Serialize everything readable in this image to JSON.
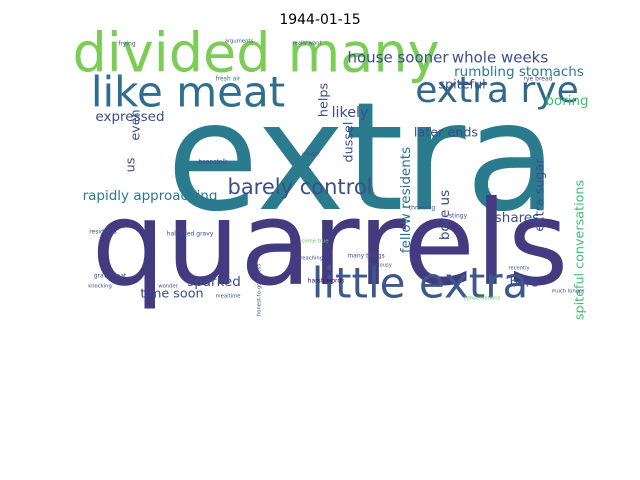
{
  "chart_data": {
    "type": "wordcloud",
    "title": "1944-01-15",
    "words": [
      {
        "text": "extra",
        "weight": 1.0,
        "color": "#2a7b8e"
      },
      {
        "text": "quarrels",
        "weight": 0.78,
        "color": "#433a80"
      },
      {
        "text": "divided many",
        "weight": 0.36,
        "color": "#7ccd55"
      },
      {
        "text": "like meat",
        "weight": 0.28,
        "color": "#2f6e8e"
      },
      {
        "text": "extra rye",
        "weight": 0.24,
        "color": "#2f6a8d"
      },
      {
        "text": "little extra",
        "weight": 0.28,
        "color": "#3b5a8b"
      },
      {
        "text": "barely control",
        "weight": 0.14,
        "color": "#3d4e8a"
      },
      {
        "text": "house sooner",
        "weight": 0.1,
        "color": "#3b4d8b"
      },
      {
        "text": "whole weeks",
        "weight": 0.1,
        "color": "#3b4d8b"
      },
      {
        "text": "rumbling stomachs",
        "weight": 0.09,
        "color": "#2b7a8e"
      },
      {
        "text": "spiteful",
        "weight": 0.085,
        "color": "#3b4d8b"
      },
      {
        "text": "boring",
        "weight": 0.09,
        "color": "#3fbc73"
      },
      {
        "text": "expressed",
        "weight": 0.09,
        "color": "#3b4d8b"
      },
      {
        "text": "later ends",
        "weight": 0.085,
        "color": "#3b4d8b"
      },
      {
        "text": "rapidly approaching",
        "weight": 0.09,
        "color": "#2a7b8e"
      },
      {
        "text": "sparked",
        "weight": 0.09,
        "color": "#3b4d8b"
      },
      {
        "text": "time soon",
        "weight": 0.085,
        "color": "#3b4d8b"
      },
      {
        "text": "shares",
        "weight": 0.09,
        "color": "#3b4d8b"
      },
      {
        "text": "bore",
        "weight": 0.085,
        "color": "#3b4d8b"
      },
      {
        "text": "likely",
        "weight": 0.095,
        "color": "#3b4d8b"
      },
      {
        "text": "helps",
        "weight": 0.085,
        "color": "#3b4d8b"
      },
      {
        "text": "fellow residents",
        "weight": 0.09,
        "color": "#2f6e8e"
      },
      {
        "text": "dussel",
        "weight": 0.085,
        "color": "#3b4d8b"
      },
      {
        "text": "bore us",
        "weight": 0.09,
        "color": "#3b4d8b"
      },
      {
        "text": "extra sugar",
        "weight": 0.085,
        "color": "#3b4d8b"
      },
      {
        "text": "spiteful conversations",
        "weight": 0.085,
        "color": "#3fbc73"
      },
      {
        "text": "even",
        "weight": 0.085,
        "color": "#3b4d8b"
      },
      {
        "text": "us",
        "weight": 0.085,
        "color": "#3b4d8b"
      },
      {
        "text": "fresh air",
        "weight": 0.04,
        "color": "#2f6e8e"
      },
      {
        "text": "harsh words",
        "weight": 0.04,
        "color": "#440154"
      },
      {
        "text": "half-filled gravy",
        "weight": 0.04,
        "color": "#3b4d8b"
      },
      {
        "text": "gravy boat",
        "weight": 0.04,
        "color": "#3b4d8b"
      },
      {
        "text": "many things",
        "weight": 0.04,
        "color": "#3b4d8b"
      },
      {
        "text": "honest-to-goodness",
        "weight": 0.035,
        "color": "#3b4d8b"
      },
      {
        "text": "residents",
        "weight": 0.04,
        "color": "#3b4d8b"
      },
      {
        "text": "beanstalk",
        "weight": 0.04,
        "color": "#3b4d8b"
      },
      {
        "text": "stingy",
        "weight": 0.04,
        "color": "#3b4d8b"
      },
      {
        "text": "throwing",
        "weight": 0.04,
        "color": "#3b4d8b"
      },
      {
        "text": "rye bread",
        "weight": 0.04,
        "color": "#3b4d8b"
      },
      {
        "text": "frying",
        "weight": 0.04,
        "color": "#3b4d8b"
      },
      {
        "text": "arguments",
        "weight": 0.035,
        "color": "#3b4d8b"
      },
      {
        "text": "really want",
        "weight": 0.035,
        "color": "#3b4d8b"
      },
      {
        "text": "insight",
        "weight": 0.035,
        "color": "#3b4d8b"
      },
      {
        "text": "preaching",
        "weight": 0.035,
        "color": "#3b4d8b"
      },
      {
        "text": "come true",
        "weight": 0.035,
        "color": "#5ec962"
      },
      {
        "text": "knocking",
        "weight": 0.035,
        "color": "#3b4d8b"
      },
      {
        "text": "wonder",
        "weight": 0.035,
        "color": "#3b4d8b"
      },
      {
        "text": "mealtime",
        "weight": 0.035,
        "color": "#3b4d8b"
      },
      {
        "text": "jealousy",
        "weight": 0.035,
        "color": "#3b4d8b"
      },
      {
        "text": "conversations",
        "weight": 0.035,
        "color": "#5ec962"
      },
      {
        "text": "recently",
        "weight": 0.035,
        "color": "#3b4d8b"
      },
      {
        "text": "much longer",
        "weight": 0.035,
        "color": "#3b4d8b"
      }
    ]
  }
}
